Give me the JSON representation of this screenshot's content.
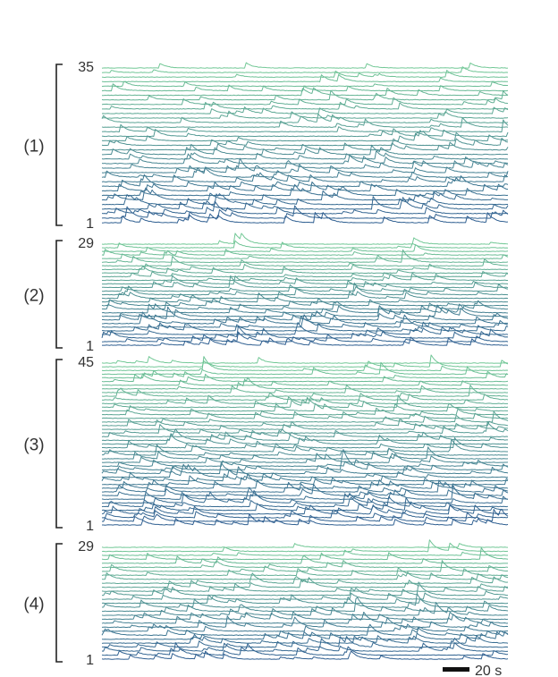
{
  "chart_data": {
    "type": "line",
    "title": "",
    "xlabel": "",
    "ylabel": "",
    "scale_bar": {
      "label": "20 s",
      "seconds": 20
    },
    "panels": [
      {
        "label": "(1)",
        "trace_count": 35,
        "top_label": "35",
        "bottom_label": "1"
      },
      {
        "label": "(2)",
        "trace_count": 29,
        "top_label": "29",
        "bottom_label": "1"
      },
      {
        "label": "(3)",
        "trace_count": 45,
        "top_label": "45",
        "bottom_label": "1"
      },
      {
        "label": "(4)",
        "trace_count": 29,
        "top_label": "29",
        "bottom_label": "1"
      }
    ],
    "colormap": {
      "bottom_trace": "#2f5f91",
      "top_trace": "#72c896"
    },
    "recording_duration_s": 210,
    "bracket_color": "#222222",
    "scale_bar_color": "#111111"
  }
}
